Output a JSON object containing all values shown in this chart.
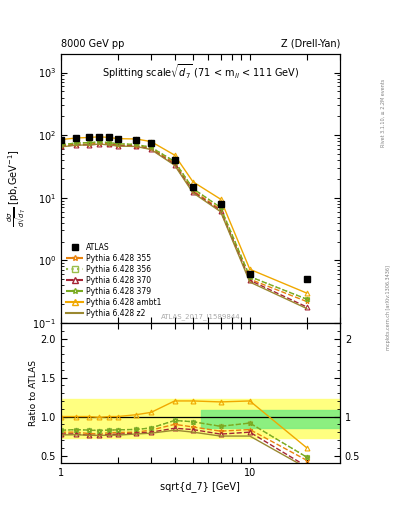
{
  "title_left": "8000 GeV pp",
  "title_right": "Z (Drell-Yan)",
  "panel_title": "Splitting scale$\\sqrt{d_7}$ (71 < m$_{ll}$ < 111 GeV)",
  "watermark": "ATLAS_2017_I1589844",
  "rivet_text": "Rivet 3.1.10, ≥ 2.2M events",
  "mcplots_text": "mcplots.cern.ch [arXiv:1306.3436]",
  "xlabel": "sqrt{d_7} [GeV]",
  "ylabel_main": "dσ/dsqrt(d_7) [pb,GeV⁻¹]",
  "ylabel_ratio": "Ratio to ATLAS",
  "xlim": [
    1,
    30
  ],
  "ylim_main": [
    0.1,
    2000
  ],
  "ylim_ratio": [
    0.4,
    2.2
  ],
  "atlas_x": [
    1.0,
    1.2,
    1.4,
    1.6,
    1.8,
    2.0,
    2.5,
    3.0,
    4.0,
    5.0,
    7.0,
    10.0,
    20.0
  ],
  "atlas_y": [
    85,
    90,
    92,
    95,
    92,
    88,
    85,
    75,
    40,
    15,
    8,
    0.6,
    0.5
  ],
  "py355_x": [
    1.0,
    1.2,
    1.4,
    1.6,
    1.8,
    2.0,
    2.5,
    3.0,
    4.0,
    5.0,
    7.0,
    10.0,
    20.0
  ],
  "py355_y": [
    68,
    72,
    72,
    74,
    73,
    70,
    68,
    62,
    36,
    13,
    6.5,
    0.5,
    0.22
  ],
  "py356_x": [
    1.0,
    1.2,
    1.4,
    1.6,
    1.8,
    2.0,
    2.5,
    3.0,
    4.0,
    5.0,
    7.0,
    10.0,
    20.0
  ],
  "py356_y": [
    70,
    75,
    76,
    78,
    76,
    73,
    71,
    64,
    38,
    14,
    7.0,
    0.55,
    0.24
  ],
  "py370_x": [
    1.0,
    1.2,
    1.4,
    1.6,
    1.8,
    2.0,
    2.5,
    3.0,
    4.0,
    5.0,
    7.0,
    10.0,
    20.0
  ],
  "py370_y": [
    66,
    70,
    70,
    72,
    71,
    68,
    67,
    60,
    34,
    12.5,
    6.2,
    0.48,
    0.18
  ],
  "py379_x": [
    1.0,
    1.2,
    1.4,
    1.6,
    1.8,
    2.0,
    2.5,
    3.0,
    4.0,
    5.0,
    7.0,
    10.0,
    20.0
  ],
  "py379_y": [
    70,
    75,
    76,
    78,
    76,
    73,
    71,
    64,
    38,
    14,
    7.0,
    0.55,
    0.24
  ],
  "py_ambt1_x": [
    1.0,
    1.2,
    1.4,
    1.6,
    1.8,
    2.0,
    2.5,
    3.0,
    4.0,
    5.0,
    7.0,
    10.0,
    20.0
  ],
  "py_ambt1_y": [
    85,
    90,
    92,
    94,
    92,
    88,
    87,
    79,
    48,
    18,
    9.5,
    0.72,
    0.3
  ],
  "py_z2_x": [
    1.0,
    1.2,
    1.4,
    1.6,
    1.8,
    2.0,
    2.5,
    3.0,
    4.0,
    5.0,
    7.0,
    10.0,
    20.0
  ],
  "py_z2_y": [
    65,
    69,
    70,
    72,
    70,
    67,
    66,
    59,
    33,
    12,
    6.0,
    0.45,
    0.17
  ],
  "colors": {
    "py355": "#e8820d",
    "py356": "#9abe4b",
    "py370": "#a52535",
    "py379": "#7aaa20",
    "py_ambt1": "#f0a800",
    "py_z2": "#9a8830"
  },
  "band_yellow_lo": 0.72,
  "band_yellow_hi": 1.22,
  "band_green_lo": 0.85,
  "band_green_hi": 1.08,
  "band_split_x": 5.5
}
